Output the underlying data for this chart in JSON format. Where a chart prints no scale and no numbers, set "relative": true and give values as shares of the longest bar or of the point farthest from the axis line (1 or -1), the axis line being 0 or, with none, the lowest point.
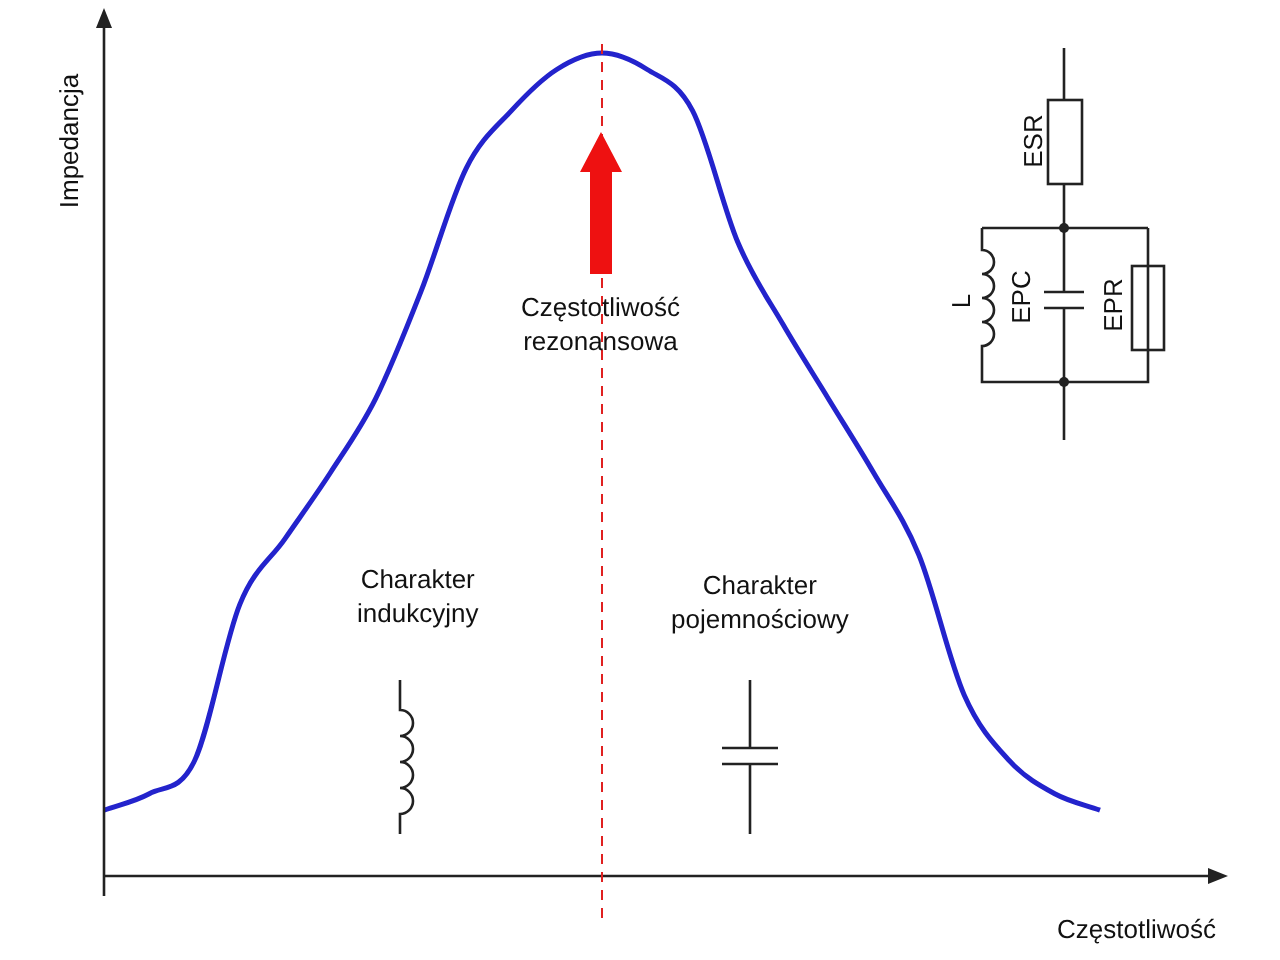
{
  "chart_data": {
    "type": "line",
    "relative": true,
    "xlabel": "Częstotliwość",
    "ylabel": "Impedancja",
    "categories": [
      null,
      null,
      null,
      null,
      null,
      null,
      null,
      null,
      null,
      null,
      null,
      null,
      null,
      null,
      null,
      null,
      null,
      null,
      null,
      null,
      null,
      null,
      null
    ],
    "series": [
      {
        "color": "#2323cc",
        "values": [
          0.08,
          0.1,
          0.14,
          0.33,
          0.41,
          0.49,
          0.58,
          0.71,
          0.86,
          0.93,
          0.98,
          1.0,
          0.98,
          0.93,
          0.77,
          0.67,
          0.58,
          0.49,
          0.39,
          0.22,
          0.14,
          0.1,
          0.08
        ]
      }
    ],
    "marker": "none",
    "line_style": "solid",
    "annotations": [
      "Częstotliwość\nrezonansowa",
      "Charakter\nindukcyjny",
      "Charakter\npojemnościowy",
      "ESR",
      "L",
      "EPC",
      "EPR"
    ]
  }
}
